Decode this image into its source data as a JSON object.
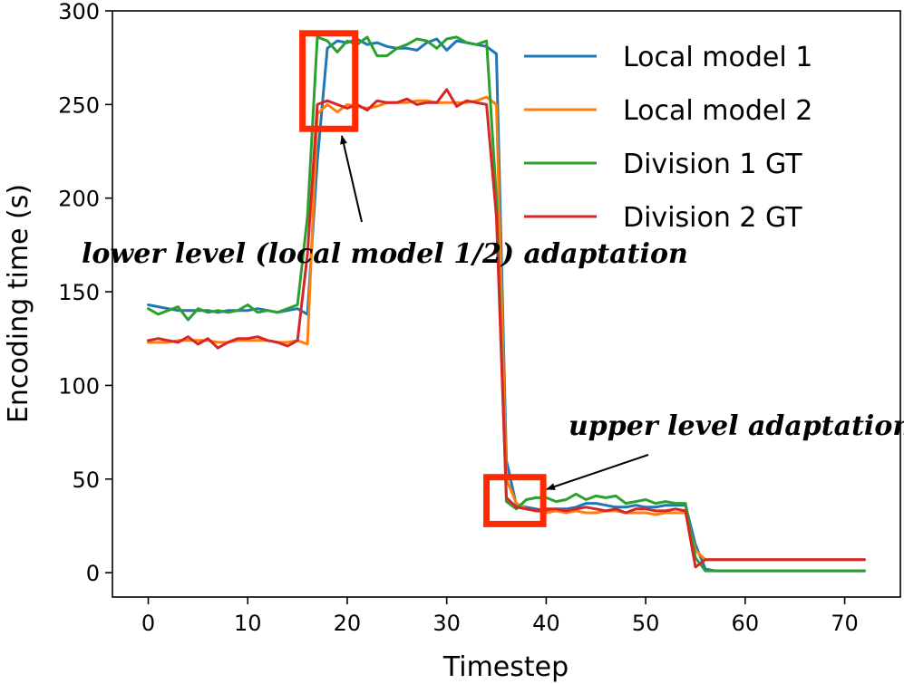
{
  "chart_data": {
    "type": "line",
    "xlabel": "Timestep",
    "ylabel": "Encoding time (s)",
    "xlim": [
      -3.6,
      75.6
    ],
    "ylim": [
      -13,
      300
    ],
    "xticks": [
      0,
      10,
      20,
      30,
      40,
      50,
      60,
      70
    ],
    "yticks": [
      0,
      50,
      100,
      150,
      200,
      250,
      300
    ],
    "legend_position": "top-right",
    "series": [
      {
        "name": "Local model 1",
        "color": "#1f77b4",
        "x": [
          0,
          1,
          2,
          3,
          4,
          5,
          6,
          7,
          8,
          9,
          10,
          11,
          12,
          13,
          14,
          15,
          16,
          17,
          18,
          19,
          20,
          21,
          22,
          23,
          24,
          25,
          26,
          27,
          28,
          29,
          30,
          31,
          32,
          33,
          34,
          35,
          36,
          37,
          38,
          39,
          40,
          41,
          42,
          43,
          44,
          45,
          46,
          47,
          48,
          49,
          50,
          51,
          52,
          53,
          54,
          55,
          56,
          57,
          58,
          59,
          60,
          61,
          62,
          63,
          64,
          65,
          66,
          67,
          68,
          69,
          70,
          71,
          72
        ],
        "y": [
          143,
          142,
          141,
          140,
          140,
          140,
          140,
          139,
          140,
          140,
          140,
          141,
          140,
          139,
          140,
          141,
          138,
          220,
          280,
          284,
          283,
          285,
          282,
          283,
          281,
          280,
          280,
          279,
          283,
          285,
          279,
          284,
          283,
          282,
          281,
          277,
          60,
          36,
          35,
          34,
          33,
          34,
          34,
          35,
          37,
          37,
          36,
          35,
          35,
          36,
          35,
          35,
          36,
          36,
          36,
          15,
          2,
          1,
          1,
          1,
          1,
          1,
          1,
          1,
          1,
          1,
          1,
          1,
          1,
          1,
          1,
          1,
          1
        ]
      },
      {
        "name": "Local model 2",
        "color": "#ff7f0e",
        "x": [
          0,
          1,
          2,
          3,
          4,
          5,
          6,
          7,
          8,
          9,
          10,
          11,
          12,
          13,
          14,
          15,
          16,
          17,
          18,
          19,
          20,
          21,
          22,
          23,
          24,
          25,
          26,
          27,
          28,
          29,
          30,
          31,
          32,
          33,
          34,
          35,
          36,
          37,
          38,
          39,
          40,
          41,
          42,
          43,
          44,
          45,
          46,
          47,
          48,
          49,
          50,
          51,
          52,
          53,
          54,
          55,
          56,
          57,
          58,
          59,
          60,
          61,
          62,
          63,
          64,
          65,
          66,
          67,
          68,
          69,
          70,
          71,
          72
        ],
        "y": [
          123,
          123,
          123,
          124,
          124,
          124,
          124,
          123,
          123,
          124,
          124,
          124,
          124,
          123,
          123,
          124,
          122,
          245,
          250,
          246,
          250,
          249,
          248,
          249,
          251,
          251,
          251,
          252,
          252,
          251,
          251,
          251,
          251,
          252,
          254,
          250,
          50,
          37,
          34,
          33,
          32,
          33,
          32,
          33,
          32,
          32,
          33,
          33,
          32,
          32,
          32,
          31,
          32,
          32,
          32,
          12,
          7,
          7,
          7,
          7,
          7,
          7,
          7,
          7,
          7,
          7,
          7,
          7,
          7,
          7,
          7,
          7,
          7
        ]
      },
      {
        "name": "Division 1 GT",
        "color": "#2ca02c",
        "x": [
          0,
          1,
          2,
          3,
          4,
          5,
          6,
          7,
          8,
          9,
          10,
          11,
          12,
          13,
          14,
          15,
          16,
          17,
          18,
          19,
          20,
          21,
          22,
          23,
          24,
          25,
          26,
          27,
          28,
          29,
          30,
          31,
          32,
          33,
          34,
          35,
          36,
          37,
          38,
          39,
          40,
          41,
          42,
          43,
          44,
          45,
          46,
          47,
          48,
          49,
          50,
          51,
          52,
          53,
          54,
          55,
          56,
          57,
          58,
          59,
          60,
          61,
          62,
          63,
          64,
          65,
          66,
          67,
          68,
          69,
          70,
          71,
          72
        ],
        "y": [
          141,
          138,
          140,
          142,
          135,
          141,
          139,
          140,
          139,
          140,
          143,
          139,
          140,
          139,
          141,
          143,
          190,
          286,
          284,
          278,
          284,
          282,
          286,
          276,
          276,
          280,
          282,
          285,
          284,
          280,
          285,
          286,
          283,
          282,
          284,
          200,
          38,
          34,
          39,
          40,
          40,
          38,
          39,
          42,
          39,
          41,
          40,
          41,
          37,
          38,
          39,
          37,
          38,
          37,
          37,
          8,
          1,
          1,
          1,
          1,
          1,
          1,
          1,
          1,
          1,
          1,
          1,
          1,
          1,
          1,
          1,
          1,
          1
        ]
      },
      {
        "name": "Division 2 GT",
        "color": "#d62728",
        "x": [
          0,
          1,
          2,
          3,
          4,
          5,
          6,
          7,
          8,
          9,
          10,
          11,
          12,
          13,
          14,
          15,
          16,
          17,
          18,
          19,
          20,
          21,
          22,
          23,
          24,
          25,
          26,
          27,
          28,
          29,
          30,
          31,
          32,
          33,
          34,
          35,
          36,
          37,
          38,
          39,
          40,
          41,
          42,
          43,
          44,
          45,
          46,
          47,
          48,
          49,
          50,
          51,
          52,
          53,
          54,
          55,
          56,
          57,
          58,
          59,
          60,
          61,
          62,
          63,
          64,
          65,
          66,
          67,
          68,
          69,
          70,
          71,
          72
        ],
        "y": [
          124,
          125,
          124,
          123,
          126,
          122,
          125,
          120,
          123,
          125,
          125,
          126,
          124,
          123,
          121,
          124,
          170,
          250,
          252,
          250,
          248,
          250,
          247,
          252,
          251,
          251,
          253,
          250,
          251,
          251,
          258,
          249,
          252,
          251,
          250,
          190,
          40,
          35,
          34,
          33,
          34,
          34,
          33,
          34,
          35,
          34,
          33,
          34,
          32,
          34,
          34,
          33,
          33,
          34,
          33,
          3,
          7,
          7,
          7,
          7,
          7,
          7,
          7,
          7,
          7,
          7,
          7,
          7,
          7,
          7,
          7,
          7,
          7
        ]
      }
    ],
    "annotations": [
      {
        "text": "lower level (local model 1/2) adaptation",
        "target_box": {
          "x": [
            15.5,
            20.8
          ],
          "y": [
            237,
            288
          ]
        }
      },
      {
        "text": "upper level adaptation",
        "target_box": {
          "x": [
            34,
            39.7
          ],
          "y": [
            26,
            51
          ]
        }
      }
    ]
  }
}
